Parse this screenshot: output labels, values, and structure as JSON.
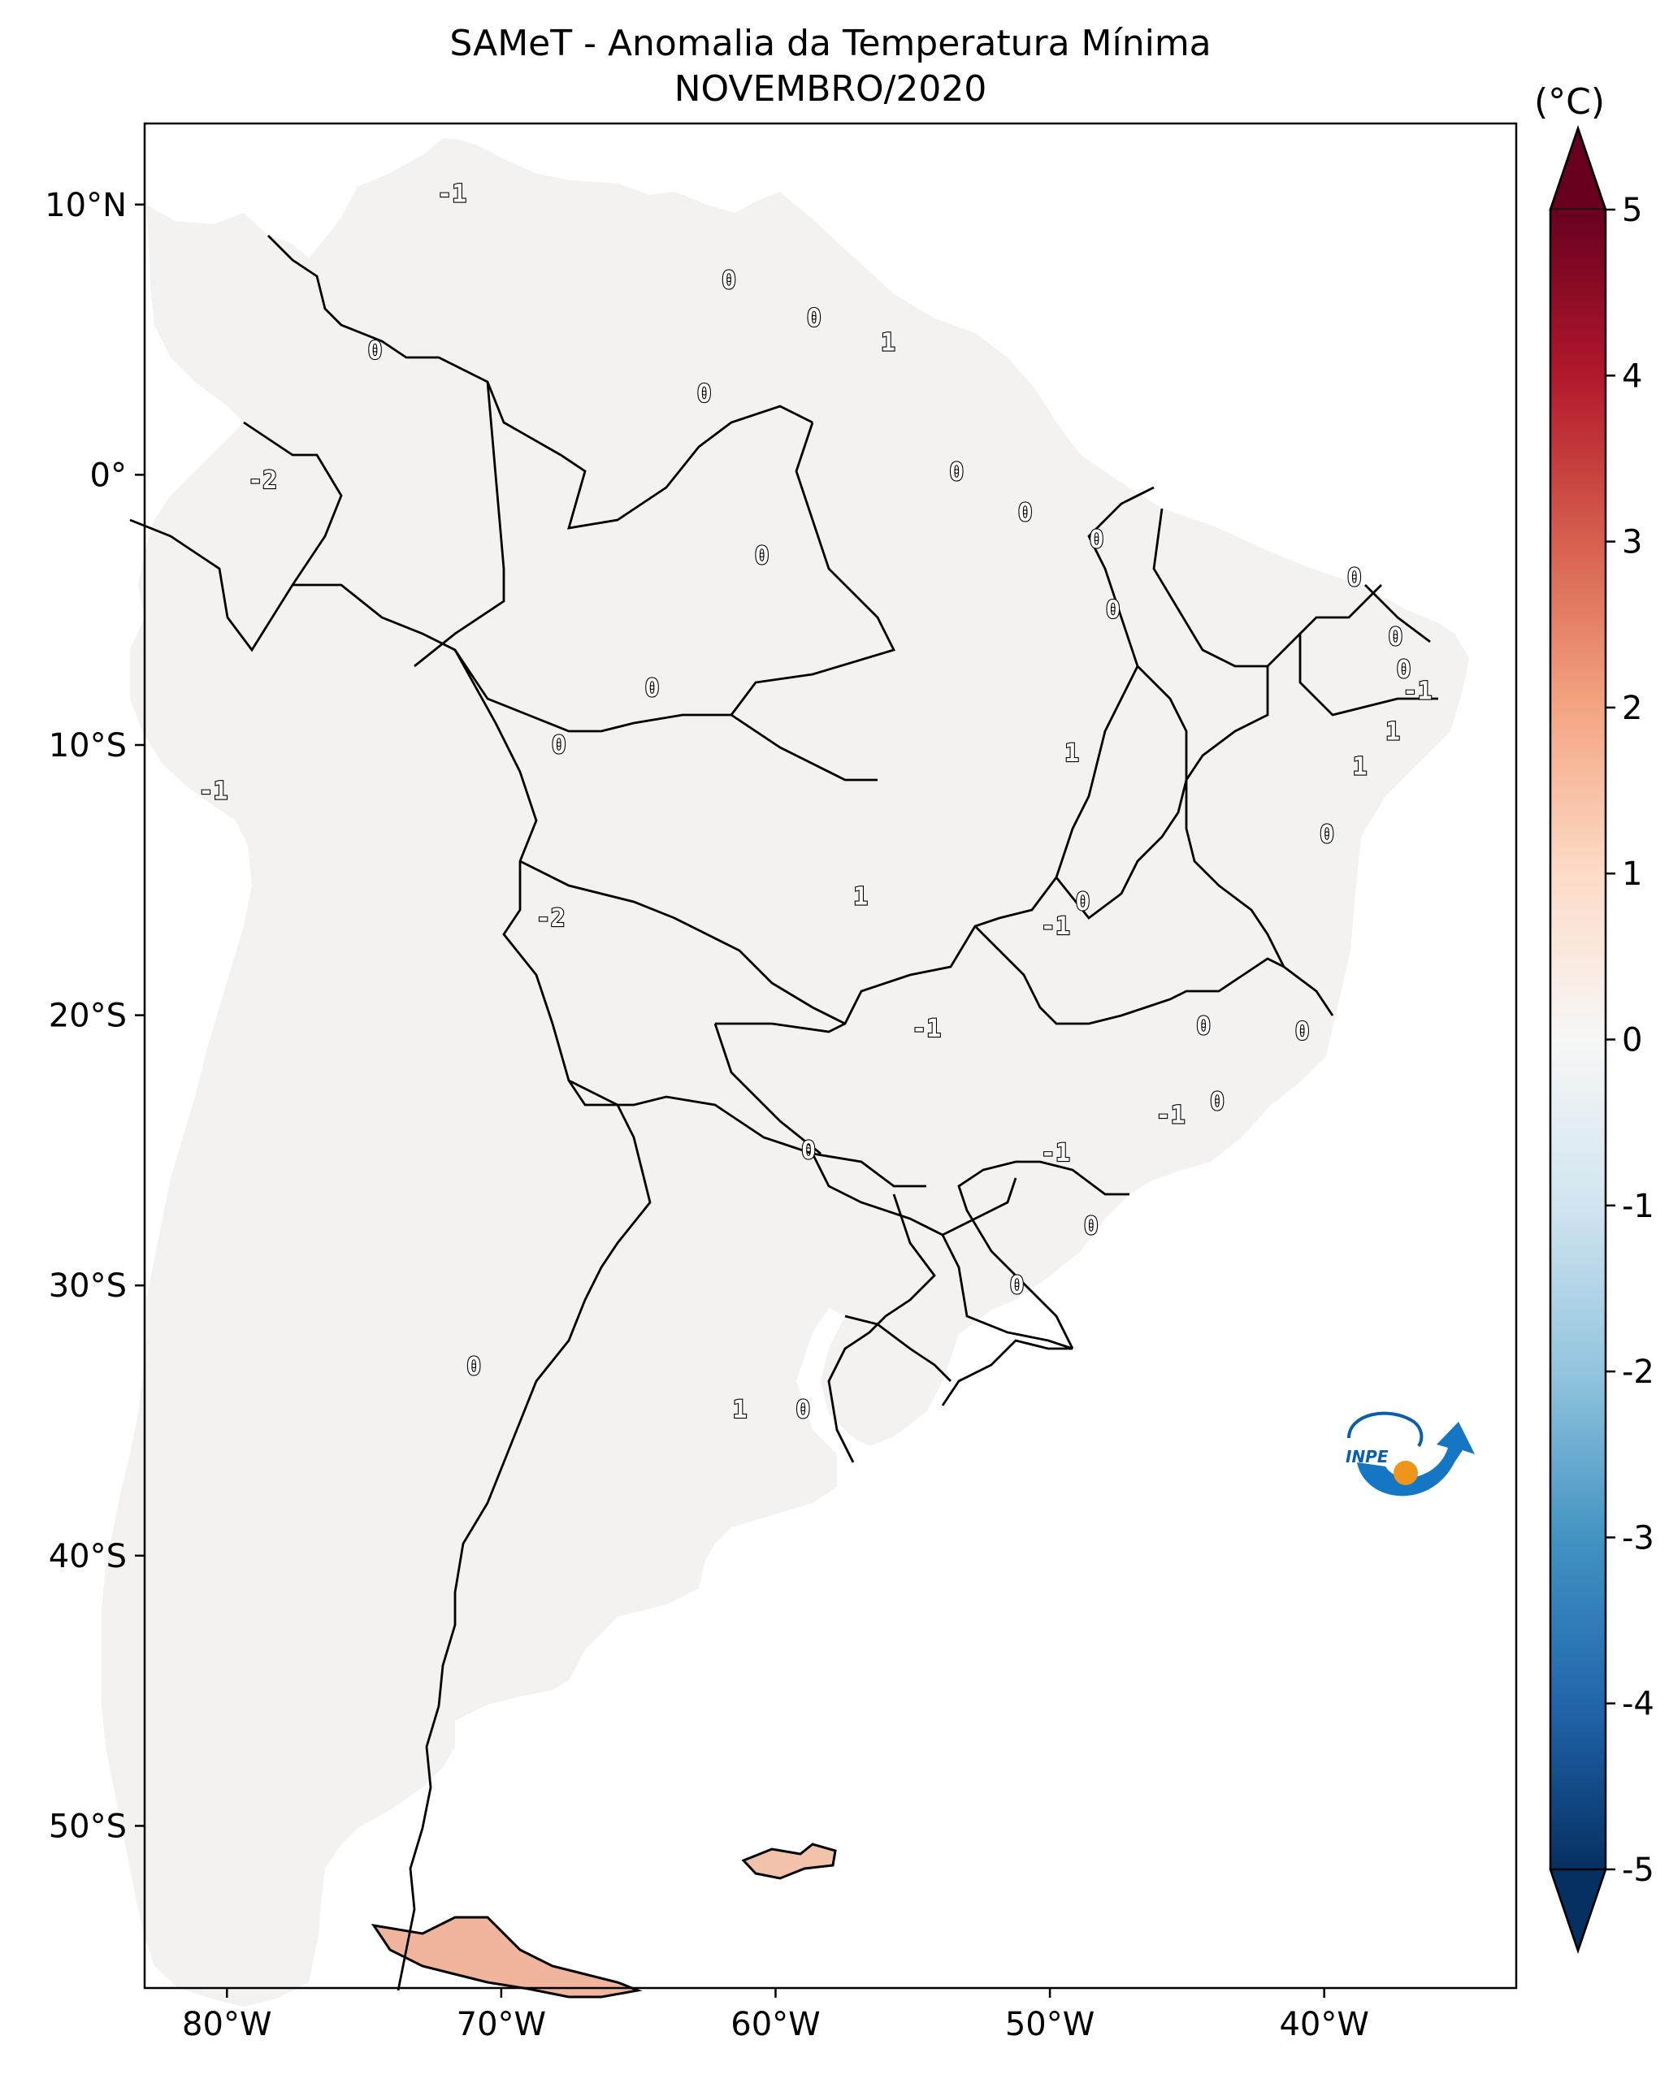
{
  "title": "SAMeT - Anomalia da Temperatura Mínima",
  "subtitle": "NOVEMBRO/2020",
  "colorbar": {
    "unit_label": "(°C)",
    "ticks": [
      "5",
      "4",
      "3",
      "2",
      "1",
      "0",
      "-1",
      "-2",
      "-3",
      "-4",
      "-5"
    ],
    "range": [
      -5,
      5
    ],
    "colormap": "RdBu_r",
    "colors": [
      "#053061",
      "#2166ac",
      "#4393c3",
      "#92c5de",
      "#d1e5f0",
      "#f7f7f7",
      "#fddbc7",
      "#f4a582",
      "#d6604d",
      "#b2182b",
      "#67001f"
    ]
  },
  "axes": {
    "lat_labels": [
      "10°N",
      "0°",
      "10°S",
      "20°S",
      "30°S",
      "40°S",
      "50°S"
    ],
    "lon_labels": [
      "80°W",
      "70°W",
      "60°W",
      "50°W",
      "40°W"
    ],
    "lat_values": [
      10,
      0,
      -10,
      -20,
      -30,
      -40,
      -50
    ],
    "lon_values": [
      -80,
      -70,
      -60,
      -50,
      -40
    ],
    "extent": {
      "lon_min": -83,
      "lon_max": -33,
      "lat_min": -56,
      "lat_max": 13
    }
  },
  "contour_labels": [
    {
      "text": "-1",
      "lon": -71.8,
      "lat": 10.4
    },
    {
      "text": "0",
      "lon": -61.7,
      "lat": 7.2
    },
    {
      "text": "0",
      "lon": -58.6,
      "lat": 5.8
    },
    {
      "text": "1",
      "lon": -55.9,
      "lat": 4.9
    },
    {
      "text": "0",
      "lon": -74.6,
      "lat": 4.6
    },
    {
      "text": "0",
      "lon": -62.6,
      "lat": 3.0
    },
    {
      "text": "-2",
      "lon": -78.7,
      "lat": -0.2
    },
    {
      "text": "0",
      "lon": -53.4,
      "lat": 0.1
    },
    {
      "text": "0",
      "lon": -50.9,
      "lat": -1.4
    },
    {
      "text": "0",
      "lon": -60.5,
      "lat": -3.0
    },
    {
      "text": "0",
      "lon": -48.3,
      "lat": -2.4
    },
    {
      "text": "0",
      "lon": -47.7,
      "lat": -5.0
    },
    {
      "text": "0",
      "lon": -38.9,
      "lat": -3.8
    },
    {
      "text": "0",
      "lon": -37.4,
      "lat": -6.0
    },
    {
      "text": "0",
      "lon": -37.1,
      "lat": -7.2
    },
    {
      "text": "-1",
      "lon": -36.6,
      "lat": -8.0
    },
    {
      "text": "1",
      "lon": -37.5,
      "lat": -9.5
    },
    {
      "text": "1",
      "lon": -38.7,
      "lat": -10.8
    },
    {
      "text": "1",
      "lon": -49.2,
      "lat": -10.3
    },
    {
      "text": "0",
      "lon": -64.5,
      "lat": -7.9
    },
    {
      "text": "0",
      "lon": -67.9,
      "lat": -10.0
    },
    {
      "text": "-1",
      "lon": -80.5,
      "lat": -11.7
    },
    {
      "text": "0",
      "lon": -39.9,
      "lat": -13.3
    },
    {
      "text": "1",
      "lon": -56.9,
      "lat": -15.6
    },
    {
      "text": "0",
      "lon": -48.8,
      "lat": -15.8
    },
    {
      "text": "-1",
      "lon": -49.8,
      "lat": -16.7
    },
    {
      "text": "-2",
      "lon": -68.2,
      "lat": -16.4
    },
    {
      "text": "-1",
      "lon": -54.5,
      "lat": -20.5
    },
    {
      "text": "0",
      "lon": -44.4,
      "lat": -20.4
    },
    {
      "text": "0",
      "lon": -40.8,
      "lat": -20.6
    },
    {
      "text": "0",
      "lon": -43.9,
      "lat": -23.2
    },
    {
      "text": "-1",
      "lon": -45.6,
      "lat": -23.7
    },
    {
      "text": "0",
      "lon": -58.8,
      "lat": -25.0
    },
    {
      "text": "-1",
      "lon": -49.8,
      "lat": -25.1
    },
    {
      "text": "0",
      "lon": -48.5,
      "lat": -27.8
    },
    {
      "text": "0",
      "lon": -51.2,
      "lat": -30.0
    },
    {
      "text": "0",
      "lon": -71.0,
      "lat": -33.0
    },
    {
      "text": "1",
      "lon": -61.3,
      "lat": -34.6
    },
    {
      "text": "0",
      "lon": -59.0,
      "lat": -34.6
    }
  ],
  "logo": {
    "text": "INPE"
  }
}
